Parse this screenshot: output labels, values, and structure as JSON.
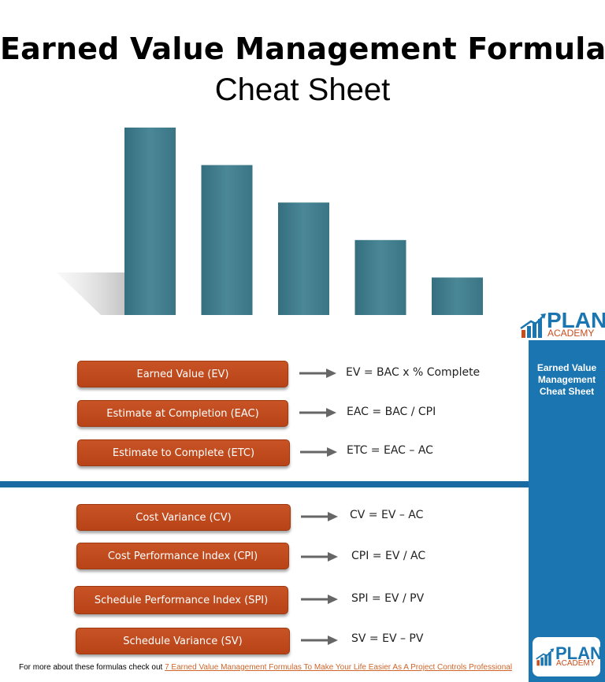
{
  "title": {
    "line1": "Earned Value Management Formulas",
    "line2": "Cheat Sheet"
  },
  "colors": {
    "bar": "#3d7b8a",
    "pill": "#c04b1c",
    "blue": "#1a75b0",
    "link": "#d0652a"
  },
  "illustration": {
    "bar_levels": [
      1.0,
      0.8,
      0.6,
      0.4,
      0.2
    ]
  },
  "logo": {
    "word1": "PLAN",
    "word2": "ACADEMY",
    "icon": "bar-chart-arrow-icon"
  },
  "side_panel": {
    "title_lines": [
      "Earned Value",
      "Management",
      "Cheat Sheet"
    ]
  },
  "formulas": [
    {
      "label": "Earned Value (EV)",
      "formula": "EV = BAC x % Complete"
    },
    {
      "label": "Estimate at Completion (EAC)",
      "formula": "EAC = BAC / CPI"
    },
    {
      "label": "Estimate to Complete (ETC)",
      "formula": "ETC = EAC – AC"
    },
    {
      "label": "Cost Variance (CV)",
      "formula": "CV = EV – AC"
    },
    {
      "label": "Cost Performance Index (CPI)",
      "formula": "CPI = EV / AC"
    },
    {
      "label": "Schedule Performance Index (SPI)",
      "formula": "SPI = EV / PV"
    },
    {
      "label": "Schedule Variance (SV)",
      "formula": "SV = EV – PV"
    }
  ],
  "footer": {
    "text": "For more about these formulas check out",
    "link": "7 Earned Value Management Formulas To Make Your Life Easier As A Project Controls Professional"
  }
}
